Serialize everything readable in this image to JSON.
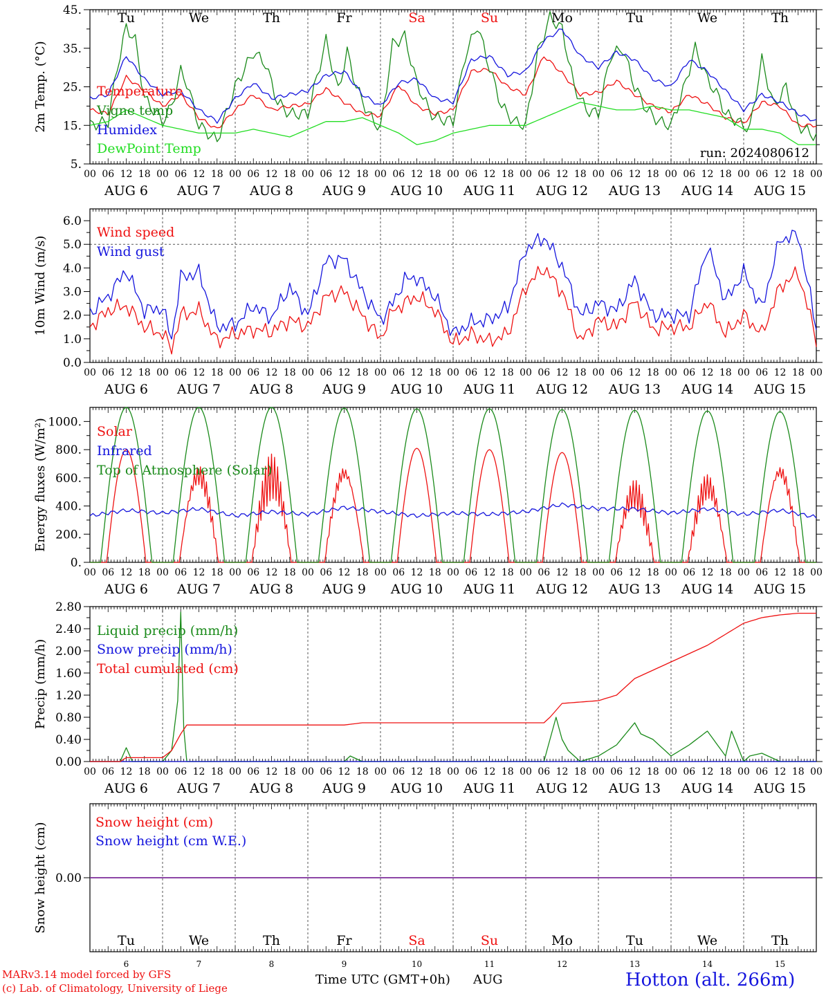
{
  "run_label": "run: 2024080612",
  "station": "Hotton (alt. 266m)",
  "footer": {
    "credit1": "MARv3.14 model forced by GFS",
    "credit2": "(c) Lab. of Climatology, University of Liege",
    "xlabel": "Time UTC (GMT+0h)",
    "month": "AUG"
  },
  "colors": {
    "red": "#ee1111",
    "green": "#1a8a1a",
    "blue": "#1515dd",
    "lightgreen": "#22dd22",
    "purple": "#7a2a9a"
  },
  "days": {
    "weekday": [
      "Tu",
      "We",
      "Th",
      "Fr",
      "Sa",
      "Su",
      "Mo",
      "Tu",
      "We",
      "Th"
    ],
    "weekend": [
      false,
      false,
      false,
      false,
      true,
      true,
      false,
      false,
      false,
      false
    ],
    "date_label": [
      "AUG 6",
      "AUG 7",
      "AUG 8",
      "AUG 9",
      "AUG 10",
      "AUG 11",
      "AUG 12",
      "AUG 13",
      "AUG 14",
      "AUG 15"
    ],
    "day_num": [
      "6",
      "7",
      "8",
      "9",
      "10",
      "11",
      "12",
      "13",
      "14",
      "15"
    ],
    "hour_ticks": [
      "00",
      "06",
      "12",
      "18"
    ],
    "end_tick": "00"
  },
  "chart_data": [
    {
      "type": "line",
      "ylabel": "2m Temp. (°C)",
      "ylim": [
        5,
        45
      ],
      "yticks": [
        "5.",
        "15.",
        "25.",
        "35.",
        "45."
      ],
      "x_units": "hours since 2024-08-06 00 UTC",
      "series": [
        {
          "name": "Temperature",
          "color_key": "red",
          "x": [
            0,
            6,
            12,
            18,
            24,
            30,
            36,
            42,
            48,
            54,
            60,
            66,
            72,
            78,
            84,
            90,
            96,
            102,
            108,
            114,
            120,
            126,
            132,
            138,
            144,
            150,
            156,
            162,
            168,
            174,
            180,
            186,
            192,
            198,
            204,
            210,
            216,
            222,
            228,
            234,
            240
          ],
          "y": [
            19,
            18,
            27.5,
            24,
            20,
            23,
            17,
            14,
            19,
            23,
            19,
            20,
            20.5,
            24.5,
            21,
            18,
            17.5,
            25.5,
            20,
            18,
            19,
            29,
            29.5,
            25,
            23,
            33,
            28.5,
            23,
            23.5,
            26.5,
            23,
            20,
            18.5,
            23,
            20.5,
            17,
            15.5,
            21,
            20,
            15,
            15
          ]
        },
        {
          "name": "Vigne temp",
          "color_key": "green",
          "x": [
            0,
            6,
            9,
            12,
            15,
            18,
            21,
            24,
            27,
            30,
            32,
            36,
            42,
            48,
            54,
            58,
            62,
            66,
            72,
            78,
            82,
            85,
            88,
            92,
            96,
            100,
            104,
            108,
            112,
            114,
            120,
            124,
            128,
            132,
            136,
            140,
            144,
            148,
            152,
            156,
            160,
            164,
            168,
            172,
            176,
            180,
            184,
            188,
            192,
            196,
            200,
            204,
            208,
            210,
            214,
            218,
            222,
            226,
            230,
            234,
            240
          ],
          "y": [
            15,
            16,
            30,
            40.5,
            37,
            22,
            19,
            16,
            20,
            29,
            26,
            15,
            11,
            25,
            34,
            31,
            21,
            18,
            18,
            37,
            24,
            34,
            25,
            18,
            14,
            36,
            38,
            26,
            19,
            17,
            16,
            33,
            41,
            30,
            20,
            16,
            15,
            34,
            43,
            40,
            25,
            19,
            18,
            33,
            35,
            25,
            19,
            16,
            15,
            24,
            35,
            27,
            22,
            18,
            16,
            14,
            32,
            20,
            25,
            15,
            12
          ]
        },
        {
          "name": "Humidex",
          "color_key": "blue",
          "x": [
            0,
            6,
            12,
            18,
            24,
            30,
            36,
            42,
            48,
            54,
            60,
            66,
            72,
            78,
            84,
            90,
            96,
            102,
            108,
            114,
            120,
            126,
            132,
            138,
            144,
            150,
            156,
            162,
            168,
            174,
            180,
            186,
            192,
            198,
            204,
            210,
            216,
            222,
            228,
            234,
            240
          ],
          "y": [
            22,
            23,
            33,
            27,
            23,
            24,
            19,
            16,
            22,
            26,
            22,
            23,
            24,
            28,
            29,
            23,
            20,
            26,
            27,
            22,
            21,
            32,
            33,
            28,
            29,
            37,
            40,
            33,
            30,
            34,
            32,
            27,
            25,
            32,
            29,
            24,
            19,
            23,
            21,
            18,
            16
          ]
        },
        {
          "name": "DewPoint Temp",
          "color_key": "lightgreen",
          "x": [
            0,
            6,
            12,
            18,
            24,
            30,
            36,
            42,
            48,
            54,
            60,
            66,
            72,
            78,
            84,
            90,
            96,
            102,
            108,
            114,
            120,
            126,
            132,
            138,
            144,
            150,
            156,
            162,
            168,
            174,
            180,
            186,
            192,
            198,
            204,
            210,
            216,
            222,
            228,
            234,
            240
          ],
          "y": [
            15,
            16,
            19,
            17,
            15,
            14,
            13,
            13,
            13,
            14,
            13,
            12,
            14,
            16,
            16,
            17,
            15,
            13,
            10,
            11,
            13,
            14,
            15,
            15,
            15,
            17,
            19,
            21,
            20,
            19,
            19,
            20,
            19,
            19,
            18,
            17,
            14,
            14,
            13,
            10,
            10
          ]
        }
      ]
    },
    {
      "type": "line",
      "ylabel": "10m Wind (m/s)",
      "ylim": [
        0,
        6.5
      ],
      "yticks": [
        "0.0",
        "1.0",
        "2.0",
        "3.0",
        "4.0",
        "5.0",
        "6.0"
      ],
      "ref_line": 5.0,
      "x_units": "hours since 2024-08-06 00 UTC",
      "series": [
        {
          "name": "Wind speed",
          "color_key": "red",
          "x": [
            0,
            6,
            12,
            18,
            24,
            27,
            30,
            36,
            42,
            48,
            54,
            60,
            66,
            72,
            78,
            84,
            90,
            96,
            100,
            104,
            108,
            114,
            120,
            126,
            132,
            138,
            144,
            150,
            156,
            162,
            168,
            174,
            180,
            186,
            192,
            198,
            204,
            210,
            216,
            222,
            228,
            234,
            240
          ],
          "y": [
            1.5,
            2.2,
            2.4,
            1.5,
            1.2,
            0.6,
            2.0,
            2.2,
            0.9,
            1.2,
            1.4,
            1.3,
            1.8,
            1.5,
            2.8,
            3.0,
            2.0,
            1.0,
            2.2,
            2.5,
            2.8,
            2.2,
            0.8,
            1.2,
            0.9,
            1.2,
            3.2,
            4.0,
            3.0,
            0.9,
            1.8,
            1.5,
            2.6,
            1.4,
            1.5,
            1.5,
            2.6,
            1.2,
            2.0,
            1.2,
            3.2,
            3.8,
            1.0
          ]
        },
        {
          "name": "Wind gust",
          "color_key": "blue",
          "x": [
            0,
            6,
            12,
            18,
            24,
            27,
            30,
            36,
            42,
            48,
            54,
            60,
            66,
            72,
            78,
            84,
            90,
            96,
            100,
            104,
            108,
            114,
            120,
            126,
            132,
            138,
            144,
            150,
            156,
            162,
            168,
            174,
            180,
            186,
            192,
            198,
            204,
            210,
            216,
            222,
            228,
            234,
            240
          ],
          "y": [
            2.1,
            2.8,
            3.9,
            2.2,
            2.3,
            1.0,
            3.6,
            3.8,
            1.5,
            1.6,
            2.4,
            1.9,
            3.2,
            2.0,
            4.3,
            4.4,
            3.0,
            1.8,
            2.5,
            3.5,
            3.6,
            2.8,
            1.2,
            1.7,
            1.8,
            2.3,
            4.8,
            5.3,
            4.1,
            2.0,
            2.5,
            2.2,
            3.5,
            2.0,
            2.0,
            2.0,
            4.9,
            2.6,
            3.8,
            2.3,
            5.2,
            5.4,
            1.5
          ]
        }
      ]
    },
    {
      "type": "line",
      "ylabel": "Energy fluxes (W/m²)",
      "ylim": [
        0,
        1100
      ],
      "yticks": [
        "0.",
        "200.",
        "400.",
        "600.",
        "800.",
        "1000."
      ],
      "x_units": "hours since 2024-08-06 00 UTC",
      "series": [
        {
          "name": "Solar",
          "color_key": "red",
          "day_peaks": [
            800,
            720,
            770,
            730,
            810,
            800,
            780,
            590,
            640,
            740
          ],
          "day_cloudy": [
            false,
            true,
            true,
            true,
            false,
            false,
            false,
            true,
            true,
            true
          ]
        },
        {
          "name": "Infrared",
          "color_key": "blue",
          "x": [
            0,
            12,
            24,
            36,
            48,
            60,
            72,
            84,
            96,
            108,
            120,
            132,
            144,
            156,
            168,
            180,
            192,
            204,
            216,
            228,
            240
          ],
          "y": [
            330,
            370,
            350,
            380,
            330,
            360,
            340,
            390,
            360,
            330,
            350,
            340,
            360,
            410,
            380,
            380,
            350,
            380,
            340,
            370,
            320
          ]
        },
        {
          "name": "Top of Atmosphere (Solar)",
          "color_key": "green",
          "day_peaks": [
            1100,
            1100,
            1100,
            1095,
            1090,
            1090,
            1085,
            1080,
            1075,
            1070
          ],
          "sunrise_hour": 3.5,
          "sunset_hour": 20.5
        }
      ]
    },
    {
      "type": "line",
      "ylabel": "Precip (mm/h)",
      "ylim": [
        0,
        2.8
      ],
      "yticks": [
        "0.00",
        "0.40",
        "0.80",
        "1.20",
        "1.60",
        "2.00",
        "2.40",
        "2.80"
      ],
      "x_units": "hours since 2024-08-06 00 UTC",
      "series": [
        {
          "name": "Liquid precip (mm/h)",
          "color_key": "green",
          "x": [
            0,
            10,
            12,
            14,
            24,
            27,
            29,
            30,
            31,
            32,
            34,
            48,
            84,
            86,
            90,
            150,
            152,
            154,
            156,
            158,
            162,
            168,
            174,
            180,
            182,
            186,
            192,
            198,
            204,
            210,
            212,
            216,
            218,
            222,
            228,
            234,
            240
          ],
          "y": [
            0,
            0,
            0.25,
            0,
            0,
            0.2,
            1.1,
            2.7,
            0.6,
            0,
            0,
            0,
            0,
            0.1,
            0,
            0,
            0.4,
            0.8,
            0.4,
            0.2,
            0,
            0.1,
            0.3,
            0.7,
            0.5,
            0.4,
            0.1,
            0.3,
            0.55,
            0.1,
            0.55,
            0,
            0.1,
            0.15,
            0,
            0,
            0
          ]
        },
        {
          "name": "Snow precip (mm/h)",
          "color_key": "blue",
          "x": [
            0,
            240
          ],
          "y": [
            0,
            0
          ]
        },
        {
          "name": "Total cumulated (cm)",
          "color_key": "red",
          "x": [
            0,
            10,
            12,
            24,
            27,
            30,
            32,
            84,
            90,
            150,
            152,
            156,
            168,
            174,
            180,
            192,
            198,
            204,
            210,
            216,
            222,
            228,
            234,
            240
          ],
          "y": [
            0,
            0,
            0.07,
            0.07,
            0.2,
            0.5,
            0.66,
            0.66,
            0.7,
            0.7,
            0.8,
            1.05,
            1.1,
            1.2,
            1.5,
            1.8,
            1.95,
            2.1,
            2.3,
            2.5,
            2.6,
            2.65,
            2.68,
            2.68
          ]
        }
      ]
    },
    {
      "type": "line",
      "ylabel": "Snow height (cm)",
      "ylim": [
        -1,
        1
      ],
      "yticks": [
        "0.00"
      ],
      "x_units": "hours since 2024-08-06 00 UTC",
      "series": [
        {
          "name": "Snow height (cm)",
          "color_key": "red",
          "x": [
            0,
            240
          ],
          "y": [
            0,
            0
          ]
        },
        {
          "name": "Snow height (cm W.E.)",
          "color_key": "blue",
          "x": [
            0,
            240
          ],
          "y": [
            0,
            0
          ]
        }
      ]
    }
  ]
}
